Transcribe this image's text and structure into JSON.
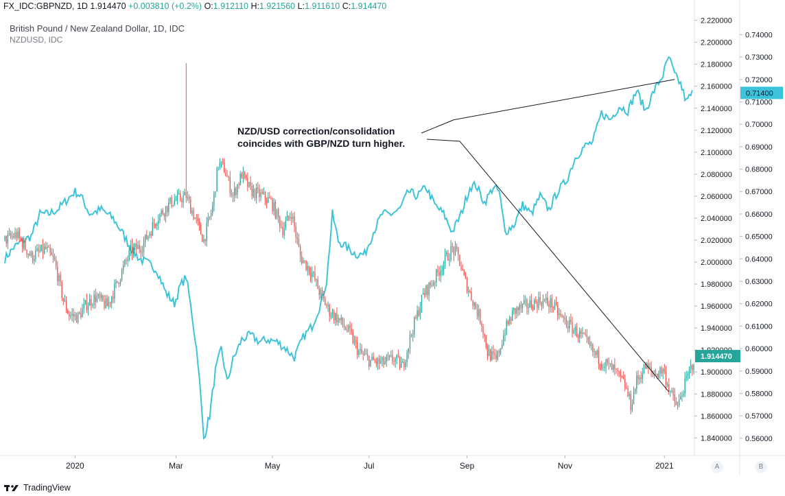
{
  "header": {
    "symbol": "FX_IDC:GBPNZD, 1D",
    "last": "1.914470",
    "change": "+0.003810 (+0.2%)",
    "o_label": "O:",
    "o_value": "1.912110",
    "h_label": "H:",
    "h_value": "1.921560",
    "l_label": "L:",
    "l_value": "1.911610",
    "c_label": "C:",
    "c_value": "1.914470"
  },
  "legend": {
    "main": "British Pound / New Zealand Dollar, 1D, IDC",
    "overlay": "NZDUSD, IDC"
  },
  "annotation": {
    "line1": "NZD/USD correction/consolidation",
    "line2": "coincides with GBP/NZD turn higher."
  },
  "scale_buttons": {
    "a": "A",
    "b": "B"
  },
  "brand": "TradingView",
  "colors": {
    "up": "#26a69a",
    "down": "#ef5350",
    "overlay": "#3cc3d9",
    "label_bg": "#26a69a"
  },
  "chart_data": {
    "type": "candlestick",
    "x_ticks": [
      "2020",
      "Mar",
      "May",
      "Jul",
      "Sep",
      "Nov",
      "2021"
    ],
    "x_tick_index": [
      48,
      117,
      183,
      249,
      316,
      383,
      451
    ],
    "y_right_main": [
      "2.220000",
      "2.200000",
      "2.180000",
      "2.160000",
      "2.140000",
      "2.120000",
      "2.100000",
      "2.080000",
      "2.060000",
      "2.040000",
      "2.020000",
      "2.000000",
      "1.980000",
      "1.960000",
      "1.940000",
      "1.920000",
      "1.900000",
      "1.880000",
      "1.860000",
      "1.840000"
    ],
    "y_right_overlay": [
      "0.74000",
      "0.73000",
      "0.72000",
      "0.71000",
      "0.70000",
      "0.69000",
      "0.68000",
      "0.67000",
      "0.66000",
      "0.65000",
      "0.64000",
      "0.63000",
      "0.62000",
      "0.61000",
      "0.60000",
      "0.59000",
      "0.58000",
      "0.57000",
      "0.56000"
    ],
    "main_ylim": [
      1.824,
      2.226
    ],
    "overlay_ylim": [
      0.5523,
      0.7493
    ],
    "main_label": "1.914470",
    "overlay_label": "0.71400",
    "series": [
      {
        "name": "GBPNZD",
        "kind": "candles",
        "anchors": [
          [
            0,
            2.02
          ],
          [
            8,
            2.025
          ],
          [
            18,
            2.005
          ],
          [
            28,
            2.012
          ],
          [
            34,
            2.0
          ],
          [
            40,
            1.965
          ],
          [
            44,
            1.952
          ],
          [
            50,
            1.95
          ],
          [
            56,
            1.962
          ],
          [
            62,
            1.968
          ],
          [
            70,
            1.96
          ],
          [
            78,
            1.985
          ],
          [
            86,
            2.01
          ],
          [
            94,
            2.015
          ],
          [
            104,
            2.04
          ],
          [
            114,
            2.055
          ],
          [
            124,
            2.06
          ],
          [
            130,
            2.04
          ],
          [
            136,
            2.02
          ],
          [
            142,
            2.05
          ],
          [
            146,
            2.09
          ],
          [
            150,
            2.085
          ],
          [
            156,
            2.06
          ],
          [
            162,
            2.08
          ],
          [
            168,
            2.065
          ],
          [
            176,
            2.06
          ],
          [
            182,
            2.055
          ],
          [
            190,
            2.03
          ],
          [
            196,
            2.045
          ],
          [
            202,
            2.005
          ],
          [
            210,
            1.99
          ],
          [
            216,
            1.97
          ],
          [
            222,
            1.955
          ],
          [
            228,
            1.948
          ],
          [
            236,
            1.935
          ],
          [
            242,
            1.918
          ],
          [
            250,
            1.91
          ],
          [
            258,
            1.908
          ],
          [
            266,
            1.912
          ],
          [
            272,
            1.905
          ],
          [
            278,
            1.935
          ],
          [
            286,
            1.97
          ],
          [
            294,
            1.985
          ],
          [
            300,
            2.0
          ],
          [
            306,
            2.012
          ],
          [
            310,
            2.005
          ],
          [
            314,
            1.985
          ],
          [
            320,
            1.965
          ],
          [
            326,
            1.945
          ],
          [
            330,
            1.918
          ],
          [
            336,
            1.91
          ],
          [
            342,
            1.938
          ],
          [
            348,
            1.955
          ],
          [
            356,
            1.96
          ],
          [
            366,
            1.965
          ],
          [
            374,
            1.962
          ],
          [
            380,
            1.95
          ],
          [
            388,
            1.94
          ],
          [
            396,
            1.93
          ],
          [
            402,
            1.918
          ],
          [
            408,
            1.91
          ],
          [
            416,
            1.902
          ],
          [
            424,
            1.888
          ],
          [
            428,
            1.87
          ],
          [
            432,
            1.892
          ],
          [
            438,
            1.905
          ],
          [
            444,
            1.898
          ],
          [
            450,
            1.902
          ],
          [
            456,
            1.878
          ],
          [
            460,
            1.868
          ],
          [
            464,
            1.885
          ],
          [
            468,
            1.9
          ],
          [
            472,
            1.914
          ]
        ],
        "spike": {
          "index": 124,
          "high": 2.181
        }
      },
      {
        "name": "NZDUSD",
        "kind": "line",
        "anchors": [
          [
            0,
            0.64
          ],
          [
            6,
            0.645
          ],
          [
            12,
            0.648
          ],
          [
            18,
            0.65
          ],
          [
            24,
            0.66
          ],
          [
            30,
            0.66
          ],
          [
            36,
            0.662
          ],
          [
            42,
            0.666
          ],
          [
            48,
            0.67
          ],
          [
            52,
            0.668
          ],
          [
            58,
            0.66
          ],
          [
            66,
            0.662
          ],
          [
            74,
            0.658
          ],
          [
            80,
            0.652
          ],
          [
            86,
            0.645
          ],
          [
            92,
            0.64
          ],
          [
            98,
            0.638
          ],
          [
            104,
            0.635
          ],
          [
            110,
            0.625
          ],
          [
            116,
            0.62
          ],
          [
            120,
            0.628
          ],
          [
            124,
            0.632
          ],
          [
            128,
            0.615
          ],
          [
            132,
            0.595
          ],
          [
            136,
            0.56
          ],
          [
            140,
            0.57
          ],
          [
            144,
            0.59
          ],
          [
            148,
            0.6
          ],
          [
            152,
            0.585
          ],
          [
            156,
            0.595
          ],
          [
            162,
            0.604
          ],
          [
            168,
            0.606
          ],
          [
            174,
            0.603
          ],
          [
            180,
            0.604
          ],
          [
            186,
            0.603
          ],
          [
            192,
            0.6
          ],
          [
            198,
            0.596
          ],
          [
            204,
            0.605
          ],
          [
            210,
            0.61
          ],
          [
            216,
            0.62
          ],
          [
            220,
            0.63
          ],
          [
            224,
            0.66
          ],
          [
            228,
            0.648
          ],
          [
            234,
            0.645
          ],
          [
            240,
            0.642
          ],
          [
            246,
            0.642
          ],
          [
            252,
            0.652
          ],
          [
            258,
            0.66
          ],
          [
            264,
            0.66
          ],
          [
            270,
            0.662
          ],
          [
            276,
            0.67
          ],
          [
            282,
            0.668
          ],
          [
            288,
            0.672
          ],
          [
            294,
            0.664
          ],
          [
            300,
            0.66
          ],
          [
            306,
            0.652
          ],
          [
            312,
            0.66
          ],
          [
            318,
            0.672
          ],
          [
            322,
            0.673
          ],
          [
            328,
            0.665
          ],
          [
            334,
            0.672
          ],
          [
            338,
            0.67
          ],
          [
            342,
            0.652
          ],
          [
            348,
            0.655
          ],
          [
            354,
            0.664
          ],
          [
            360,
            0.66
          ],
          [
            366,
            0.668
          ],
          [
            372,
            0.662
          ],
          [
            378,
            0.67
          ],
          [
            384,
            0.675
          ],
          [
            390,
            0.685
          ],
          [
            396,
            0.69
          ],
          [
            402,
            0.692
          ],
          [
            408,
            0.705
          ],
          [
            414,
            0.702
          ],
          [
            420,
            0.708
          ],
          [
            426,
            0.706
          ],
          [
            432,
            0.715
          ],
          [
            438,
            0.706
          ],
          [
            444,
            0.715
          ],
          [
            450,
            0.722
          ],
          [
            454,
            0.73
          ],
          [
            458,
            0.722
          ],
          [
            462,
            0.718
          ],
          [
            466,
            0.71
          ],
          [
            470,
            0.714
          ]
        ]
      }
    ],
    "trendlines": [
      {
        "from": [
          307,
          0.702
        ],
        "to": [
          458,
          0.72
        ],
        "axis": "overlay"
      },
      {
        "from": [
          311,
          2.11
        ],
        "to": [
          454,
          1.882
        ],
        "axis": "main"
      }
    ]
  }
}
